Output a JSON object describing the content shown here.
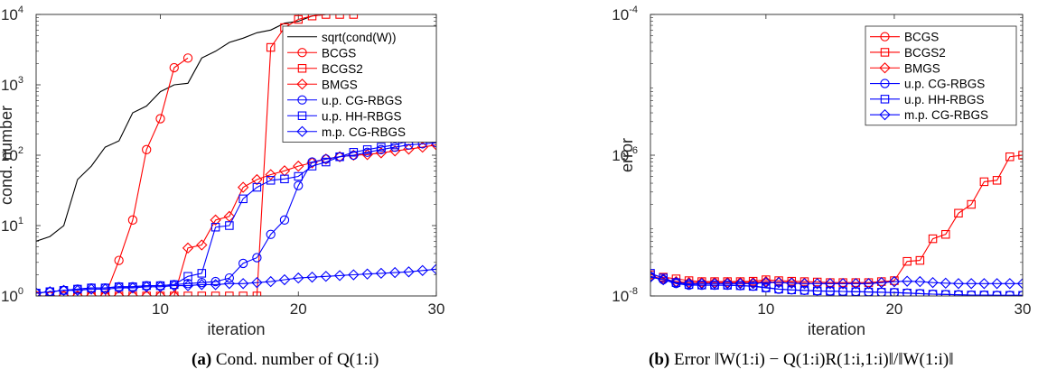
{
  "captions": {
    "a_label": "(a)",
    "a_text": "Cond. number of Q(1:i)",
    "b_label": "(b)",
    "b_text": "Error ‖W(1:i) − Q(1:i)R(1:i,1:i)‖/‖W(1:i)‖"
  },
  "colors": {
    "red": "#ff0000",
    "blue": "#0000ff",
    "black": "#000000"
  },
  "chart_data": [
    {
      "type": "line",
      "title": "",
      "xlabel": "iteration",
      "ylabel": "cond. number",
      "yscale": "log",
      "xlim": [
        1,
        30
      ],
      "ylim": [
        1,
        10000
      ],
      "xticks": [
        10,
        20,
        30
      ],
      "yticks": [
        1,
        10,
        100,
        1000,
        10000
      ],
      "ytick_labels": [
        [
          "10",
          "0"
        ],
        [
          "10",
          "1"
        ],
        [
          "10",
          "2"
        ],
        [
          "10",
          "3"
        ],
        [
          "10",
          "4"
        ]
      ],
      "legend_position": "top-right",
      "series": [
        {
          "name": "sqrt(cond(W))",
          "color": "#000000",
          "marker": "none",
          "x": [
            1,
            2,
            3,
            4,
            5,
            6,
            7,
            8,
            9,
            10,
            11,
            12,
            13,
            14,
            15,
            16,
            17,
            18,
            19,
            20,
            21,
            22,
            23,
            24
          ],
          "y": [
            6,
            7,
            10,
            45,
            70,
            130,
            160,
            400,
            500,
            800,
            1000,
            1050,
            2400,
            3000,
            4000,
            4600,
            5500,
            6000,
            7500,
            8000,
            9500,
            10000,
            10000,
            10000
          ]
        },
        {
          "name": "BCGS",
          "color": "#ff0000",
          "marker": "circle",
          "x": [
            1,
            2,
            3,
            4,
            5,
            6,
            7,
            8,
            9,
            10,
            11,
            12
          ],
          "y": [
            1,
            1,
            1,
            1,
            1,
            1,
            3.2,
            12,
            120,
            330,
            1750,
            2400
          ]
        },
        {
          "name": "BCGS2",
          "color": "#ff0000",
          "marker": "square",
          "x": [
            1,
            2,
            3,
            4,
            5,
            6,
            7,
            8,
            9,
            10,
            11,
            12,
            13,
            14,
            15,
            16,
            17,
            18,
            19,
            20,
            21,
            22,
            23,
            24
          ],
          "y": [
            1,
            1,
            1,
            1,
            1,
            1,
            1,
            1,
            1,
            1,
            1,
            1,
            1,
            1,
            1,
            1,
            1,
            3400,
            6500,
            8500,
            9500,
            10000,
            10000,
            10000
          ]
        },
        {
          "name": "BMGS",
          "color": "#ff0000",
          "marker": "diamond",
          "x": [
            1,
            2,
            3,
            4,
            5,
            6,
            7,
            8,
            9,
            10,
            11,
            12,
            13,
            14,
            15,
            16,
            17,
            18,
            19,
            20,
            21,
            22,
            23,
            24,
            25,
            26,
            27,
            28,
            29,
            30
          ],
          "y": [
            1,
            1,
            1,
            1,
            1,
            1,
            1,
            1,
            1,
            1,
            1,
            4.8,
            5.3,
            12,
            13.5,
            35,
            45,
            53,
            60,
            70,
            78,
            88,
            95,
            100,
            102,
            108,
            115,
            122,
            130,
            140
          ]
        },
        {
          "name": "u.p. CG-RBGS",
          "color": "#0000ff",
          "marker": "circle",
          "x": [
            1,
            2,
            3,
            4,
            5,
            6,
            7,
            8,
            9,
            10,
            11,
            12,
            13,
            14,
            15,
            16,
            17,
            18,
            19,
            20,
            21,
            22,
            23,
            24,
            25,
            26,
            27,
            28,
            29,
            30
          ],
          "y": [
            1.1,
            1.15,
            1.2,
            1.25,
            1.3,
            1.3,
            1.35,
            1.35,
            1.4,
            1.4,
            1.45,
            1.5,
            1.55,
            1.6,
            1.8,
            2.9,
            3.5,
            7.5,
            12,
            37,
            80,
            88,
            95,
            100,
            110,
            120,
            130,
            140,
            145,
            150
          ]
        },
        {
          "name": "u.p. HH-RBGS",
          "color": "#0000ff",
          "marker": "square",
          "x": [
            1,
            2,
            3,
            4,
            5,
            6,
            7,
            8,
            9,
            10,
            11,
            12,
            13,
            14,
            15,
            16,
            17,
            18,
            19,
            20,
            21,
            22,
            23,
            24,
            25,
            26,
            27,
            28,
            29,
            30
          ],
          "y": [
            1.1,
            1.15,
            1.2,
            1.25,
            1.3,
            1.3,
            1.35,
            1.35,
            1.4,
            1.4,
            1.45,
            1.9,
            2.1,
            9.5,
            10,
            24,
            35,
            44,
            46,
            50,
            70,
            80,
            95,
            110,
            120,
            130,
            140,
            160,
            200,
            230
          ]
        },
        {
          "name": "m.p. CG-RBGS",
          "color": "#0000ff",
          "marker": "diamond",
          "x": [
            1,
            2,
            3,
            4,
            5,
            6,
            7,
            8,
            9,
            10,
            11,
            12,
            13,
            14,
            15,
            16,
            17,
            18,
            19,
            20,
            21,
            22,
            23,
            24,
            25,
            26,
            27,
            28,
            29,
            30
          ],
          "y": [
            1.1,
            1.15,
            1.2,
            1.2,
            1.25,
            1.25,
            1.3,
            1.3,
            1.35,
            1.35,
            1.4,
            1.4,
            1.45,
            1.45,
            1.5,
            1.5,
            1.55,
            1.6,
            1.7,
            1.8,
            1.85,
            1.9,
            1.95,
            2.0,
            2.05,
            2.1,
            2.15,
            2.2,
            2.3,
            2.4
          ]
        }
      ]
    },
    {
      "type": "line",
      "title": "",
      "xlabel": "iteration",
      "ylabel": "error",
      "yscale": "log",
      "xlim": [
        1,
        30
      ],
      "ylim": [
        1e-08,
        0.0001
      ],
      "xticks": [
        10,
        20,
        30
      ],
      "yticks": [
        1e-08,
        1e-06,
        0.0001
      ],
      "ytick_labels": [
        [
          "10",
          "-8"
        ],
        [
          "10",
          "-6"
        ],
        [
          "10",
          "-4"
        ]
      ],
      "legend_position": "top-right",
      "series": [
        {
          "name": "BCGS",
          "color": "#ff0000",
          "marker": "circle",
          "x": [],
          "y": []
        },
        {
          "name": "BCGS2",
          "color": "#ff0000",
          "marker": "square",
          "x": [
            1,
            2,
            3,
            4,
            5,
            6,
            7,
            8,
            9,
            10,
            11,
            12,
            13,
            14,
            15,
            16,
            17,
            18,
            19,
            20,
            21,
            22,
            23,
            24,
            25,
            26,
            27,
            28,
            29,
            30
          ],
          "y": [
            2e-08,
            1.85e-08,
            1.75e-08,
            1.65e-08,
            1.6e-08,
            1.6e-08,
            1.6e-08,
            1.6e-08,
            1.62e-08,
            1.7e-08,
            1.65e-08,
            1.62e-08,
            1.6e-08,
            1.58e-08,
            1.55e-08,
            1.55e-08,
            1.55e-08,
            1.55e-08,
            1.6e-08,
            1.65e-08,
            3.1e-08,
            3.2e-08,
            6.5e-08,
            7.5e-08,
            1.5e-07,
            2e-07,
            4.2e-07,
            4.4e-07,
            9.5e-07,
            1e-06
          ]
        },
        {
          "name": "BMGS",
          "color": "#ff0000",
          "marker": "diamond",
          "x": [
            1,
            2,
            3,
            4,
            5,
            6,
            7,
            8,
            9,
            10,
            11,
            12,
            13,
            14,
            15,
            16,
            17,
            18,
            19,
            20
          ],
          "y": [
            1.9e-08,
            1.75e-08,
            1.6e-08,
            1.55e-08,
            1.55e-08,
            1.55e-08,
            1.55e-08,
            1.55e-08,
            1.55e-08,
            1.6e-08,
            1.57e-08,
            1.55e-08,
            1.52e-08,
            1.5e-08,
            1.5e-08,
            1.5e-08,
            1.5e-08,
            1.5e-08,
            1.55e-08,
            1.6e-08
          ]
        },
        {
          "name": "u.p. CG-RBGS",
          "color": "#0000ff",
          "marker": "circle",
          "x": [
            1,
            2,
            3,
            4,
            5,
            6,
            7,
            8,
            9,
            10,
            11,
            12,
            13,
            14,
            15,
            16,
            17,
            18,
            19,
            20,
            21,
            22,
            23,
            24,
            25,
            26,
            27,
            28,
            29,
            30
          ],
          "y": [
            1.9e-08,
            1.7e-08,
            1.5e-08,
            1.42e-08,
            1.42e-08,
            1.42e-08,
            1.42e-08,
            1.4e-08,
            1.38e-08,
            1.32e-08,
            1.25e-08,
            1.22e-08,
            1.2e-08,
            1.18e-08,
            1.17e-08,
            1.16e-08,
            1.15e-08,
            1.14e-08,
            1.13e-08,
            1.12e-08,
            1.1e-08,
            1.08e-08,
            1.06e-08,
            1.05e-08,
            1.04e-08,
            1.03e-08,
            1.03e-08,
            1.02e-08,
            1.02e-08,
            1.02e-08
          ]
        },
        {
          "name": "u.p. HH-RBGS",
          "color": "#0000ff",
          "marker": "square",
          "x": [
            1,
            2,
            3,
            4,
            5,
            6,
            7,
            8,
            9,
            10,
            11,
            12,
            13,
            14,
            15,
            16,
            17,
            18,
            19,
            20,
            21,
            22,
            23,
            24,
            25,
            26,
            27,
            28,
            29,
            30
          ],
          "y": [
            2.1e-08,
            1.8e-08,
            1.55e-08,
            1.45e-08,
            1.43e-08,
            1.42e-08,
            1.42e-08,
            1.4e-08,
            1.37e-08,
            1.3e-08,
            1.25e-08,
            1.22e-08,
            1.2e-08,
            1.18e-08,
            1.17e-08,
            1.16e-08,
            1.15e-08,
            1.14e-08,
            1.13e-08,
            1.12e-08,
            1.1e-08,
            1.08e-08,
            1.06e-08,
            1.05e-08,
            1.04e-08,
            1.03e-08,
            1.03e-08,
            1.02e-08,
            1.02e-08,
            1.02e-08
          ]
        },
        {
          "name": "m.p. CG-RBGS",
          "color": "#0000ff",
          "marker": "diamond",
          "x": [
            1,
            2,
            3,
            4,
            5,
            6,
            7,
            8,
            9,
            10,
            11,
            12,
            13,
            14,
            15,
            16,
            17,
            18,
            19,
            20,
            21,
            22,
            23,
            24,
            25,
            26,
            27,
            28,
            29,
            30
          ],
          "y": [
            1.85e-08,
            1.7e-08,
            1.55e-08,
            1.5e-08,
            1.5e-08,
            1.5e-08,
            1.5e-08,
            1.5e-08,
            1.5e-08,
            1.55e-08,
            1.55e-08,
            1.52e-08,
            1.5e-08,
            1.5e-08,
            1.5e-08,
            1.5e-08,
            1.5e-08,
            1.5e-08,
            1.55e-08,
            1.6e-08,
            1.62e-08,
            1.6e-08,
            1.55e-08,
            1.52e-08,
            1.5e-08,
            1.5e-08,
            1.5e-08,
            1.5e-08,
            1.5e-08,
            1.5e-08
          ]
        }
      ]
    }
  ]
}
